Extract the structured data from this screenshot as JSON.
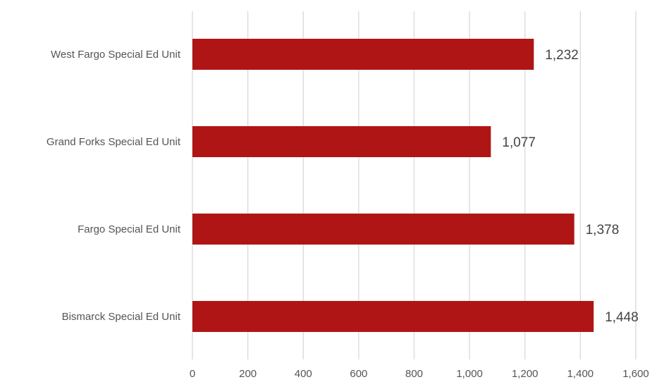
{
  "chart_data": {
    "type": "bar",
    "orientation": "horizontal",
    "categories": [
      "West Fargo Special Ed Unit",
      "Grand Forks Special Ed Unit",
      "Fargo Special Ed Unit",
      "Bismarck Special Ed Unit"
    ],
    "values": [
      1232,
      1077,
      1378,
      1448
    ],
    "data_labels": [
      "1,232",
      "1,077",
      "1,378",
      "1,448"
    ],
    "title": "",
    "xlabel": "",
    "ylabel": "",
    "xlim": [
      0,
      1600
    ],
    "x_ticks": [
      0,
      200,
      400,
      600,
      800,
      1000,
      1200,
      1400,
      1600
    ],
    "x_tick_labels": [
      "0",
      "200",
      "400",
      "600",
      "800",
      "1,000",
      "1,200",
      "1,400",
      "1,600"
    ],
    "grid": "vertical",
    "legend": "none",
    "colors": {
      "bar": "#b01515",
      "grid": "#d9d9d9",
      "text": "#555555"
    }
  }
}
